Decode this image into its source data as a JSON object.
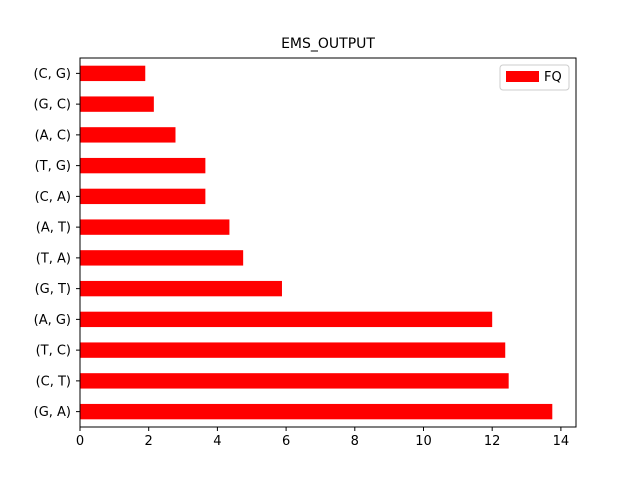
{
  "chart_data": {
    "type": "bar",
    "orientation": "horizontal",
    "title": "EMS_OUTPUT",
    "xlabel": "",
    "ylabel": "",
    "categories": [
      "(G, A)",
      "(C, T)",
      "(T, C)",
      "(A, G)",
      "(G, T)",
      "(T, A)",
      "(A, T)",
      "(C, A)",
      "(T, G)",
      "(A, C)",
      "(G, C)",
      "(C, G)"
    ],
    "series": [
      {
        "name": "FQ",
        "values": [
          13.75,
          12.48,
          12.38,
          12.0,
          5.88,
          4.75,
          4.35,
          3.65,
          3.65,
          2.78,
          2.15,
          1.9
        ],
        "color": "#ff0000"
      }
    ],
    "xlim": [
      0,
      14.44
    ],
    "xticks": [
      0,
      2,
      4,
      6,
      8,
      10,
      12,
      14
    ],
    "grid": false,
    "legend_position": "top-right"
  }
}
